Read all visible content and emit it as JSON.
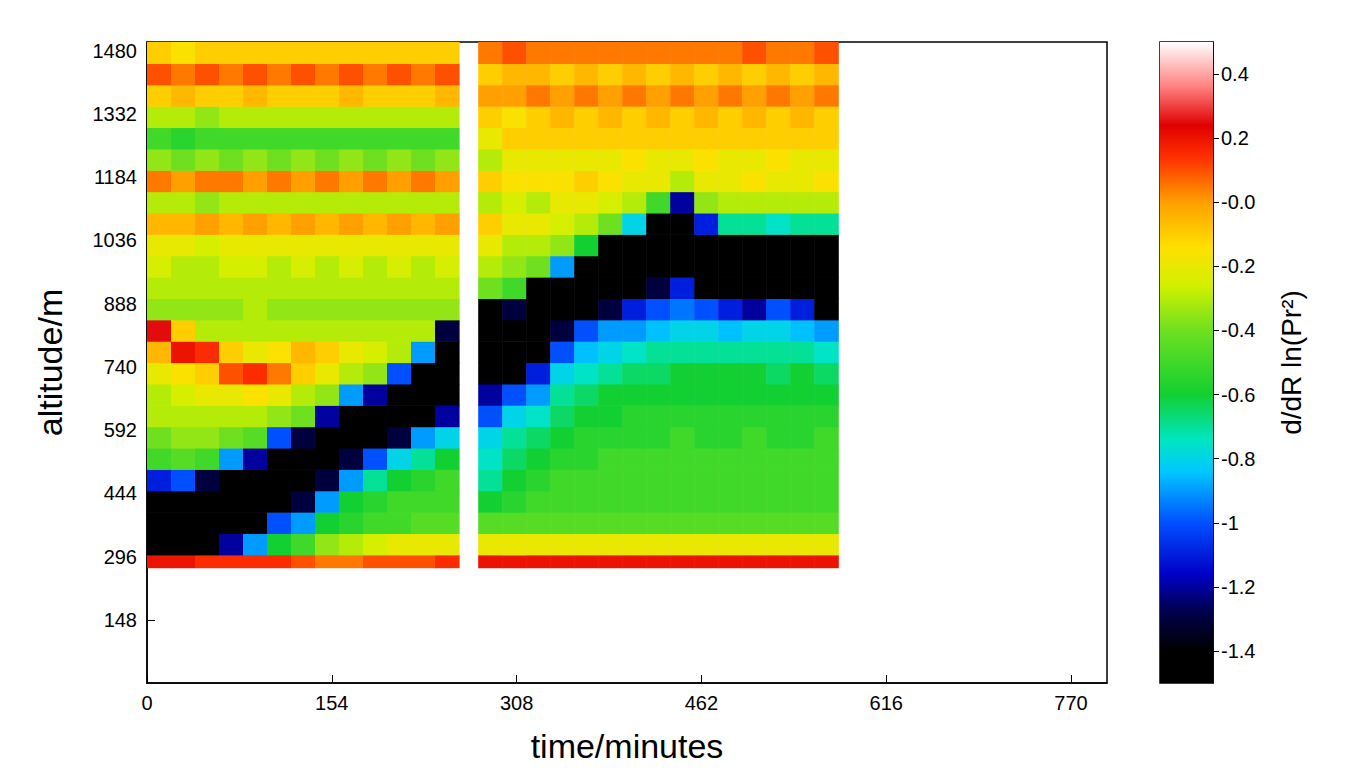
{
  "chart_data": {
    "type": "heatmap",
    "xlabel": "time/minutes",
    "ylabel": "altitude/m",
    "xlim": [
      0,
      800
    ],
    "xticks": [
      0,
      154,
      308,
      462,
      616,
      770
    ],
    "ylim": [
      0,
      1500
    ],
    "yticks": [
      148,
      296,
      444,
      592,
      740,
      888,
      1036,
      1184,
      1332,
      1480
    ],
    "grid": false,
    "x_edges": [
      0,
      20,
      40,
      60,
      80,
      100,
      120,
      140,
      160,
      180,
      200,
      220,
      240,
      260,
      276,
      296,
      316,
      336,
      356,
      376,
      396,
      416,
      436,
      456,
      476,
      496,
      516,
      536,
      556,
      576
    ],
    "y_edges": [
      270,
      300,
      350,
      400,
      450,
      500,
      550,
      600,
      650,
      700,
      750,
      800,
      850,
      900,
      950,
      1000,
      1050,
      1100,
      1150,
      1200,
      1250,
      1300,
      1350,
      1400,
      1450,
      1500
    ],
    "cells": [
      [
        0.2,
        -1.5,
        -1.5,
        -1.5,
        -1.1,
        -0.5,
        -0.4,
        -0.3,
        -0.3,
        -0.2,
        -0.05,
        0.25,
        -0.35,
        -0.3,
        -0.25,
        -0.2,
        -0.05,
        -0.3,
        0.05,
        -0.35,
        -0.5,
        -0.3,
        -0.1,
        0.1,
        -0.1
      ],
      [
        0.2,
        -1.5,
        -1.5,
        -1.5,
        -1.0,
        -0.45,
        -0.35,
        -0.3,
        -0.25,
        -0.15,
        0.2,
        -0.1,
        -0.35,
        -0.3,
        -0.3,
        -0.2,
        -0.05,
        -0.3,
        0.0,
        -0.4,
        -0.55,
        -0.3,
        -0.05,
        0.05,
        -0.15
      ],
      [
        0.15,
        -1.5,
        -1.5,
        -1.5,
        -1.3,
        -0.5,
        -0.35,
        -0.3,
        -0.2,
        -0.1,
        0.15,
        -0.3,
        -0.35,
        -0.3,
        -0.3,
        -0.25,
        0.0,
        -0.35,
        0.05,
        -0.35,
        -0.5,
        -0.35,
        -0.1,
        0.1,
        -0.1
      ],
      [
        0.15,
        -1.2,
        -1.5,
        -1.5,
        -1.5,
        -0.9,
        -0.4,
        -0.3,
        -0.2,
        0.1,
        -0.1,
        -0.3,
        -0.35,
        -0.3,
        -0.25,
        -0.2,
        -0.05,
        -0.3,
        0.05,
        -0.4,
        -0.5,
        -0.3,
        -0.1,
        0.05,
        -0.1
      ],
      [
        0.15,
        -0.9,
        -1.5,
        -1.5,
        -1.5,
        -1.2,
        -0.45,
        -0.3,
        -0.15,
        0.15,
        -0.2,
        -0.3,
        -0.3,
        -0.3,
        -0.25,
        -0.2,
        0.0,
        -0.3,
        0.0,
        -0.35,
        -0.5,
        -0.3,
        -0.05,
        0.1,
        -0.1
      ],
      [
        0.15,
        -0.6,
        -1.0,
        -1.5,
        -1.5,
        -1.5,
        -1.0,
        -0.35,
        -0.2,
        0.05,
        -0.15,
        -0.3,
        -0.35,
        -0.3,
        -0.3,
        -0.2,
        -0.05,
        -0.3,
        0.05,
        -0.4,
        -0.5,
        -0.3,
        -0.1,
        0.05,
        -0.1
      ],
      [
        0.1,
        -0.5,
        -0.9,
        -1.3,
        -1.5,
        -1.5,
        -1.3,
        -0.4,
        -0.3,
        -0.1,
        -0.05,
        -0.3,
        -0.35,
        -0.3,
        -0.25,
        -0.2,
        0.0,
        -0.3,
        0.0,
        -0.35,
        -0.5,
        -0.3,
        -0.1,
        0.1,
        -0.1
      ],
      [
        0.05,
        -0.35,
        -0.6,
        -0.9,
        -1.3,
        -1.5,
        -1.5,
        -1.2,
        -0.35,
        -0.2,
        -0.1,
        -0.3,
        -0.35,
        -0.3,
        -0.3,
        -0.2,
        -0.05,
        -0.3,
        0.05,
        -0.4,
        -0.5,
        -0.3,
        -0.1,
        0.05,
        -0.1
      ],
      [
        0.05,
        -0.3,
        -0.55,
        -0.6,
        -0.9,
        -1.3,
        -1.5,
        -1.5,
        -0.9,
        -0.3,
        -0.2,
        -0.3,
        -0.35,
        -0.3,
        -0.25,
        -0.2,
        0.0,
        -0.3,
        0.0,
        -0.35,
        -0.5,
        -0.3,
        -0.05,
        0.1,
        -0.1
      ],
      [
        0.1,
        -0.25,
        -0.5,
        -0.55,
        -0.7,
        -1.0,
        -1.5,
        -1.5,
        -1.2,
        -0.35,
        -0.25,
        -0.3,
        -0.35,
        -0.3,
        -0.3,
        -0.2,
        -0.05,
        -0.3,
        0.05,
        -0.4,
        -0.5,
        -0.3,
        -0.1,
        0.05,
        -0.1
      ],
      [
        0.1,
        -0.2,
        -0.5,
        -0.5,
        -0.6,
        -0.8,
        -1.3,
        -1.5,
        -1.5,
        -1.0,
        -0.3,
        -0.3,
        -0.35,
        -0.3,
        -0.25,
        -0.2,
        0.0,
        -0.3,
        0.0,
        -0.35,
        -0.5,
        -0.3,
        -0.1,
        0.1,
        -0.1
      ],
      [
        0.1,
        -0.2,
        -0.45,
        -0.5,
        -0.55,
        -0.7,
        -0.9,
        -1.5,
        -1.5,
        -1.5,
        -0.9,
        -0.3,
        -0.35,
        -0.3,
        -0.3,
        -0.2,
        -0.05,
        -0.3,
        0.05,
        -0.4,
        -0.5,
        -0.3,
        -0.1,
        0.05,
        -0.1
      ],
      [
        0.15,
        -0.2,
        -0.45,
        -0.5,
        -0.5,
        -0.6,
        -0.8,
        -1.2,
        -1.5,
        -1.5,
        -1.5,
        -1.3,
        -0.35,
        -0.3,
        -0.25,
        -0.2,
        0.0,
        -0.3,
        0.0,
        -0.35,
        -0.5,
        -0.3,
        -0.05,
        0.1,
        -0.1
      ],
      null,
      [
        0.2,
        -0.2,
        -0.45,
        -0.6,
        -0.7,
        -0.75,
        -0.8,
        -1.0,
        -1.2,
        -1.5,
        -1.5,
        -1.5,
        -1.4,
        -0.4,
        -0.3,
        -0.2,
        -0.1,
        -0.3,
        -0.1,
        -0.3,
        -0.2,
        -0.1,
        0.0,
        -0.1,
        0.05
      ],
      [
        0.2,
        -0.2,
        -0.45,
        -0.55,
        -0.6,
        -0.65,
        -0.7,
        -0.8,
        -1.0,
        -1.5,
        -1.5,
        -1.5,
        -1.3,
        -0.5,
        -0.35,
        -0.3,
        -0.2,
        -0.25,
        -0.15,
        -0.2,
        -0.1,
        -0.15,
        0.0,
        -0.05,
        0.1
      ],
      [
        0.2,
        -0.2,
        -0.45,
        -0.5,
        -0.55,
        -0.6,
        -0.65,
        -0.75,
        -0.9,
        -1.1,
        -1.5,
        -1.5,
        -1.5,
        -1.4,
        -0.4,
        -0.3,
        -0.2,
        -0.3,
        -0.15,
        -0.2,
        -0.1,
        -0.1,
        0.05,
        -0.05,
        0.05
      ],
      [
        0.2,
        -0.2,
        -0.45,
        -0.5,
        -0.5,
        -0.55,
        -0.6,
        -0.65,
        -0.7,
        -0.8,
        -1.0,
        -1.3,
        -1.5,
        -1.5,
        -0.9,
        -0.35,
        -0.25,
        -0.2,
        -0.15,
        -0.2,
        -0.1,
        -0.05,
        0.0,
        -0.1,
        0.05
      ],
      [
        0.2,
        -0.2,
        -0.45,
        -0.5,
        -0.5,
        -0.55,
        -0.55,
        -0.6,
        -0.65,
        -0.75,
        -0.85,
        -1.0,
        -1.5,
        -1.5,
        -1.5,
        -0.6,
        -0.3,
        -0.2,
        -0.1,
        -0.2,
        -0.1,
        -0.1,
        0.05,
        -0.05,
        0.05
      ],
      [
        0.2,
        -0.2,
        -0.45,
        -0.5,
        -0.5,
        -0.5,
        -0.55,
        -0.6,
        -0.6,
        -0.7,
        -0.8,
        -0.9,
        -1.3,
        -1.5,
        -1.5,
        -1.4,
        -0.4,
        -0.25,
        -0.15,
        -0.2,
        -0.1,
        -0.05,
        0.0,
        -0.1,
        0.05
      ],
      [
        0.2,
        -0.2,
        -0.45,
        -0.5,
        -0.5,
        -0.5,
        -0.55,
        -0.55,
        -0.6,
        -0.65,
        -0.75,
        -0.9,
        -1.1,
        -1.5,
        -1.5,
        -1.5,
        -0.8,
        -0.3,
        -0.2,
        -0.15,
        -0.1,
        -0.1,
        0.05,
        -0.05,
        0.05
      ],
      [
        0.2,
        -0.2,
        -0.45,
        -0.5,
        -0.5,
        -0.5,
        -0.55,
        -0.55,
        -0.6,
        -0.65,
        -0.7,
        -0.85,
        -1.0,
        -1.3,
        -1.5,
        -1.5,
        -1.5,
        -0.5,
        -0.2,
        -0.2,
        -0.1,
        -0.05,
        0.0,
        -0.1,
        0.05
      ],
      [
        0.2,
        -0.2,
        -0.45,
        -0.5,
        -0.5,
        -0.5,
        -0.5,
        -0.55,
        -0.6,
        -0.6,
        -0.7,
        -0.8,
        -0.95,
        -1.1,
        -1.5,
        -1.5,
        -1.5,
        -1.2,
        -0.3,
        -0.2,
        -0.1,
        -0.1,
        0.05,
        -0.05,
        0.05
      ],
      [
        0.2,
        -0.2,
        -0.45,
        -0.5,
        -0.5,
        -0.5,
        -0.55,
        -0.55,
        -0.6,
        -0.6,
        -0.7,
        -0.8,
        -1.0,
        -1.5,
        -1.5,
        -1.5,
        -1.1,
        -0.35,
        -0.2,
        -0.15,
        -0.1,
        -0.05,
        0.0,
        -0.1,
        0.05
      ],
      [
        0.2,
        -0.2,
        -0.45,
        -0.5,
        -0.5,
        -0.5,
        -0.55,
        -0.55,
        -0.6,
        -0.6,
        -0.7,
        -0.85,
        -1.1,
        -1.5,
        -1.5,
        -1.5,
        -0.7,
        -0.3,
        -0.2,
        -0.2,
        -0.1,
        -0.1,
        0.05,
        -0.05,
        0.05
      ],
      [
        0.2,
        -0.2,
        -0.45,
        -0.5,
        -0.5,
        -0.5,
        -0.5,
        -0.55,
        -0.6,
        -0.6,
        -0.7,
        -0.8,
        -1.2,
        -1.5,
        -1.5,
        -1.5,
        -0.7,
        -0.3,
        -0.15,
        -0.2,
        -0.1,
        -0.05,
        0.0,
        -0.1,
        0.1
      ],
      [
        0.2,
        -0.2,
        -0.45,
        -0.5,
        -0.5,
        -0.5,
        -0.55,
        -0.55,
        -0.6,
        -0.65,
        -0.7,
        -0.8,
        -1.0,
        -1.5,
        -1.5,
        -1.5,
        -0.75,
        -0.3,
        -0.2,
        -0.15,
        -0.1,
        -0.1,
        0.05,
        -0.05,
        0.05
      ],
      [
        0.2,
        -0.2,
        -0.45,
        -0.5,
        -0.5,
        -0.5,
        -0.55,
        -0.55,
        -0.6,
        -0.6,
        -0.7,
        -0.85,
        -1.1,
        -1.5,
        -1.5,
        -1.5,
        -0.7,
        -0.3,
        -0.2,
        -0.2,
        -0.1,
        -0.05,
        0.0,
        -0.1,
        0.05
      ],
      [
        0.2,
        -0.2,
        -0.45,
        -0.5,
        -0.5,
        -0.5,
        -0.5,
        -0.55,
        -0.6,
        -0.65,
        -0.75,
        -0.9,
        -1.4,
        -1.5,
        -1.5,
        -1.5,
        -0.7,
        -0.3,
        -0.15,
        -0.2,
        -0.1,
        -0.1,
        0.05,
        -0.05,
        0.1
      ]
    ],
    "colorbar": {
      "label": "d/dR ln(Pr²)",
      "range": [
        -1.5,
        0.5
      ],
      "ticks": [
        0.4,
        0.2,
        {
          "value": 0,
          "label": "-0.0"
        },
        -0.2,
        -0.4,
        -0.6,
        -0.8,
        -1.0,
        -1.2,
        -1.4
      ]
    }
  }
}
